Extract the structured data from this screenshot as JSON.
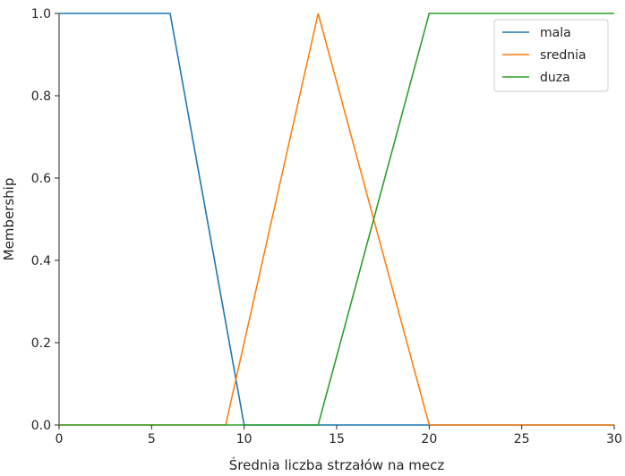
{
  "chart_data": {
    "type": "line",
    "title": "",
    "xlabel": "Średnia liczba strzałów na mecz",
    "ylabel": "Membership",
    "xlim": [
      0,
      30
    ],
    "ylim": [
      0,
      1.0
    ],
    "x_ticks": [
      0,
      5,
      10,
      15,
      20,
      25,
      30
    ],
    "y_ticks": [
      0.0,
      0.2,
      0.4,
      0.6,
      0.8,
      1.0
    ],
    "x_tick_labels": [
      "0",
      "5",
      "10",
      "15",
      "20",
      "25",
      "30"
    ],
    "y_tick_labels": [
      "0.0",
      "0.2",
      "0.4",
      "0.6",
      "0.8",
      "1.0"
    ],
    "grid": false,
    "legend_position": "top-right",
    "series": [
      {
        "name": "mala",
        "color": "#1f77b4",
        "points": [
          [
            0,
            1
          ],
          [
            6,
            1
          ],
          [
            10,
            0
          ],
          [
            30,
            0
          ]
        ]
      },
      {
        "name": "srednia",
        "color": "#ff7f0e",
        "points": [
          [
            0,
            0
          ],
          [
            9,
            0
          ],
          [
            14,
            1
          ],
          [
            20,
            0
          ],
          [
            30,
            0
          ]
        ]
      },
      {
        "name": "duza",
        "color": "#2ca02c",
        "points": [
          [
            0,
            0
          ],
          [
            14,
            0
          ],
          [
            20,
            1
          ],
          [
            30,
            1
          ]
        ]
      }
    ]
  }
}
